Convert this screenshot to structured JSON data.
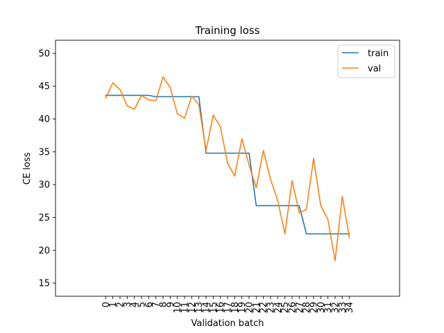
{
  "chart_data": {
    "type": "line",
    "title": "Training loss",
    "xlabel": "Validation batch",
    "ylabel": "CE loss",
    "x": [
      0,
      1,
      2,
      3,
      4,
      5,
      6,
      7,
      8,
      9,
      10,
      11,
      12,
      13,
      14,
      15,
      16,
      17,
      18,
      19,
      20,
      21,
      22,
      23,
      24,
      25,
      26,
      27,
      28,
      29,
      30,
      31,
      32,
      33,
      34
    ],
    "xlim": [
      -7,
      41
    ],
    "ylim": [
      13,
      52
    ],
    "yticks": [
      15,
      20,
      25,
      30,
      35,
      40,
      45,
      50
    ],
    "grid": false,
    "legend_position": "top-right",
    "series": [
      {
        "name": "train",
        "color": "#1f77b4",
        "values": [
          43.6,
          43.6,
          43.6,
          43.6,
          43.6,
          43.6,
          43.6,
          43.4,
          43.4,
          43.4,
          43.4,
          43.4,
          43.4,
          43.4,
          34.8,
          34.8,
          34.8,
          34.8,
          34.8,
          34.8,
          34.8,
          26.8,
          26.8,
          26.8,
          26.8,
          26.8,
          26.8,
          26.8,
          22.5,
          22.5,
          22.5,
          22.5,
          22.5,
          22.5,
          22.5
        ]
      },
      {
        "name": "val",
        "color": "#ff7f0e",
        "values": [
          43.2,
          45.5,
          44.5,
          42.0,
          41.5,
          43.6,
          42.9,
          42.8,
          46.4,
          44.8,
          40.8,
          40.1,
          43.5,
          42.2,
          35.2,
          40.6,
          38.8,
          33.3,
          31.3,
          37.0,
          33.0,
          29.5,
          35.2,
          30.8,
          27.6,
          22.5,
          30.6,
          25.7,
          26.2,
          34.0,
          26.8,
          24.7,
          18.4,
          28.2,
          21.9
        ]
      }
    ]
  }
}
